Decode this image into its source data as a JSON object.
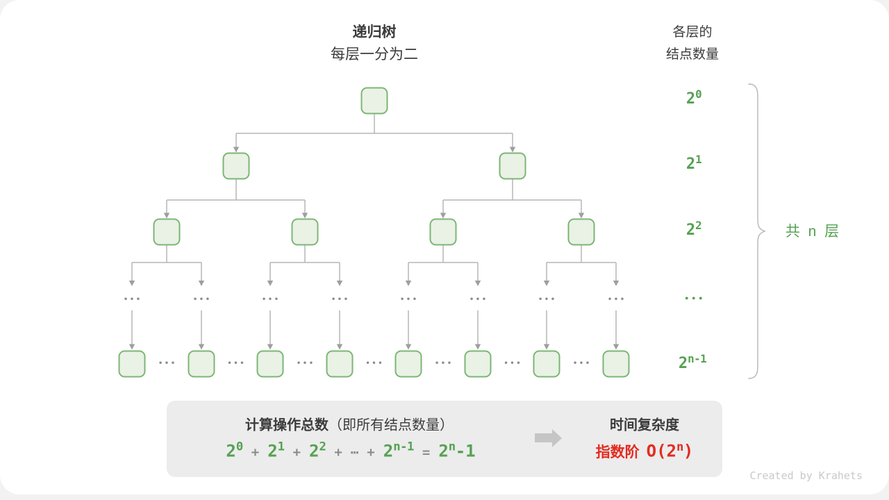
{
  "page": {
    "title": "递归树",
    "subtitle": "每层一分为二",
    "right_header_line1": "各层的",
    "right_header_line2": "结点数量",
    "watermark": "Created by Krahets"
  },
  "tree": {
    "description": "binary recursion tree, each level splits in two",
    "ellipsis": "•••",
    "brace_label": "共 n 层",
    "levels": [
      {
        "node_count": 1,
        "count_base": "2",
        "count_exp": "0"
      },
      {
        "node_count": 2,
        "count_base": "2",
        "count_exp": "1"
      },
      {
        "node_count": 4,
        "count_base": "2",
        "count_exp": "2"
      },
      {
        "node_count": "…",
        "count_dots": "•••"
      },
      {
        "node_count": 8,
        "count_base": "2",
        "count_exp": "n-1"
      }
    ]
  },
  "summary": {
    "title_bold": "计算操作总数",
    "title_rest": "（即所有结点数量）",
    "plus": "+",
    "dots": "⋯",
    "equals": "=",
    "terms": [
      {
        "base": "2",
        "exp": "0"
      },
      {
        "base": "2",
        "exp": "1"
      },
      {
        "base": "2",
        "exp": "2"
      },
      {
        "base": "2",
        "exp": "n-1"
      }
    ],
    "result": {
      "base": "2",
      "exp": "n",
      "suffix": "-1"
    },
    "complexity_title": "时间复杂度",
    "complexity_prefix": "指数阶",
    "complexity_base": "O(2",
    "complexity_exp": "n",
    "complexity_close": ")"
  },
  "colors": {
    "green": "#55a152",
    "node_fill": "#e9f2e5",
    "node_border": "#7cb674",
    "line": "#b5b5b5",
    "arrowhead": "#9e9e9e",
    "text_dark": "#3b3b3b",
    "gray_operator": "#8c8c8c",
    "dots_gray": "#8a8a8a",
    "red": "#e42b20",
    "box_bg": "#ececec",
    "block_arrow": "#c5c5c5",
    "watermark": "#c9c9c9"
  }
}
